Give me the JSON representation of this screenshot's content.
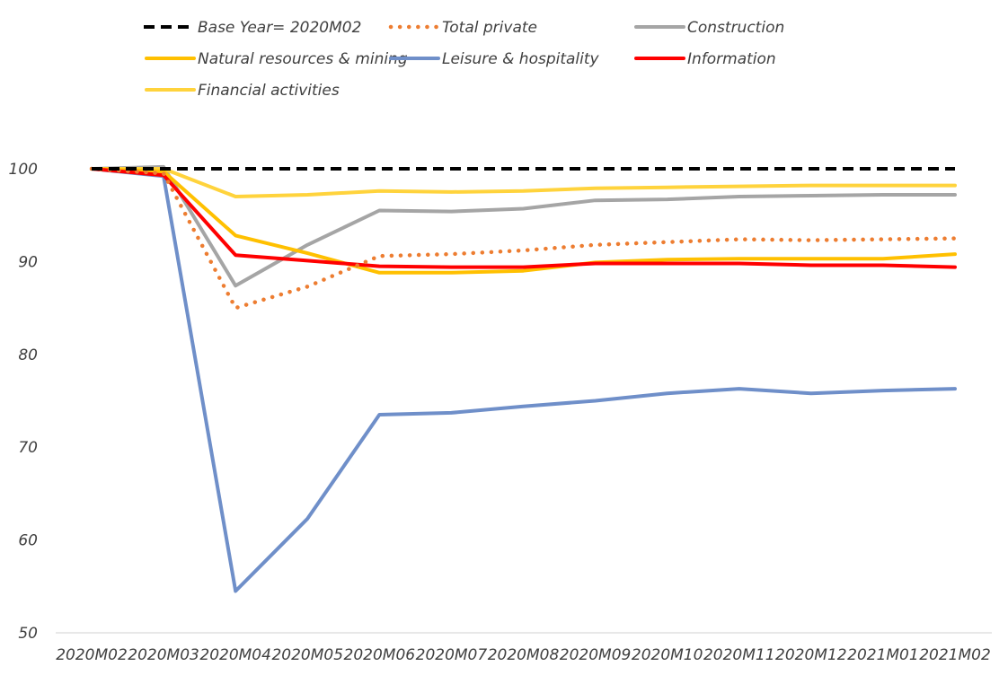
{
  "chart_data": {
    "type": "line",
    "title": "",
    "xlabel": "",
    "ylabel": "",
    "categories": [
      "2020M02",
      "2020M03",
      "2020M04",
      "2020M05",
      "2020M06",
      "2020M07",
      "2020M08",
      "2020M09",
      "2020M10",
      "2020M11",
      "2020M12",
      "2021M01",
      "2021M02"
    ],
    "ylim": [
      50,
      100
    ],
    "yticks": [
      50,
      60,
      70,
      80,
      90,
      100
    ],
    "grid": false,
    "legend_position": "top",
    "series": [
      {
        "name": "Base Year= 2020M02",
        "color": "#000000",
        "style": "dashed",
        "values": [
          100,
          100,
          100,
          100,
          100,
          100,
          100,
          100,
          100,
          100,
          100,
          100,
          100
        ]
      },
      {
        "name": "Total private",
        "color": "#ED7D31",
        "style": "dotted",
        "values": [
          100,
          99.5,
          85,
          87.3,
          90.6,
          90.8,
          91.2,
          91.8,
          92.1,
          92.4,
          92.3,
          92.4,
          92.5
        ]
      },
      {
        "name": "Construction",
        "color": "#A5A5A5",
        "style": "solid",
        "values": [
          100,
          100.2,
          87.4,
          91.8,
          95.5,
          95.4,
          95.7,
          96.6,
          96.7,
          97,
          97.1,
          97.2,
          97.2
        ]
      },
      {
        "name": "Natural resources & mining",
        "color": "#FFC000",
        "style": "solid",
        "values": [
          100,
          99.7,
          92.8,
          90.9,
          88.8,
          88.8,
          89,
          89.9,
          90.2,
          90.3,
          90.3,
          90.3,
          90.8
        ]
      },
      {
        "name": "Leisure & hospitality",
        "color": "#6F8FC9",
        "style": "solid",
        "values": [
          100,
          99.2,
          54.5,
          62.3,
          73.5,
          73.7,
          74.4,
          75,
          75.8,
          76.3,
          75.8,
          76.1,
          76.3
        ]
      },
      {
        "name": "Information",
        "color": "#FF0000",
        "style": "solid",
        "values": [
          100,
          99.3,
          90.7,
          90.1,
          89.5,
          89.4,
          89.4,
          89.8,
          89.8,
          89.8,
          89.6,
          89.6,
          89.4
        ]
      },
      {
        "name": "Financial activities",
        "color": "#FFD33C",
        "style": "solid",
        "values": [
          100,
          100,
          97,
          97.2,
          97.6,
          97.5,
          97.6,
          97.9,
          98,
          98.1,
          98.2,
          98.2,
          98.2
        ]
      }
    ]
  }
}
